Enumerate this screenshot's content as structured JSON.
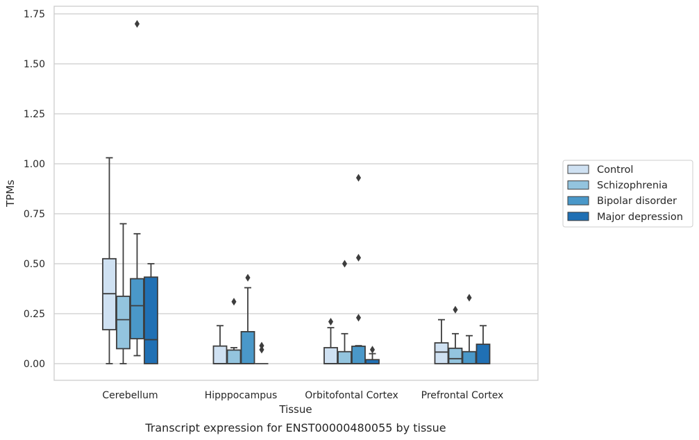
{
  "chart_data": {
    "type": "box",
    "title": "",
    "caption": "Transcript expression for ENST00000480055 by tissue",
    "xlabel": "Tissue",
    "ylabel": "TPMs",
    "ylim": [
      -0.08,
      1.78
    ],
    "yticks": [
      "0.00",
      "0.25",
      "0.50",
      "0.75",
      "1.00",
      "1.25",
      "1.50",
      "1.75"
    ],
    "grid": "horizontal",
    "legend_position": "right",
    "categories": [
      "Cerebellum",
      "Hipppocampus",
      "Orbitofontal Cortex",
      "Prefrontal Cortex"
    ],
    "series": [
      {
        "name": "Control",
        "color": "#cfe1f2",
        "boxes": [
          {
            "q1": 0.17,
            "median": 0.35,
            "q3": 0.525,
            "whisker_low": 0.0,
            "whisker_high": 1.03,
            "outliers": []
          },
          {
            "q1": 0.0,
            "median": 0.0,
            "q3": 0.088,
            "whisker_low": 0.0,
            "whisker_high": 0.19,
            "outliers": []
          },
          {
            "q1": 0.0,
            "median": 0.0,
            "q3": 0.08,
            "whisker_low": 0.0,
            "whisker_high": 0.18,
            "outliers": [
              0.21
            ]
          },
          {
            "q1": 0.0,
            "median": 0.058,
            "q3": 0.104,
            "whisker_low": 0.0,
            "whisker_high": 0.22,
            "outliers": []
          }
        ]
      },
      {
        "name": "Schizophrenia",
        "color": "#93c4de",
        "boxes": [
          {
            "q1": 0.075,
            "median": 0.22,
            "q3": 0.337,
            "whisker_low": 0.0,
            "whisker_high": 0.7,
            "outliers": []
          },
          {
            "q1": 0.0,
            "median": 0.0,
            "q3": 0.068,
            "whisker_low": 0.0,
            "whisker_high": 0.08,
            "outliers": [
              0.31
            ]
          },
          {
            "q1": 0.0,
            "median": 0.0,
            "q3": 0.06,
            "whisker_low": 0.0,
            "whisker_high": 0.15,
            "outliers": [
              0.5
            ]
          },
          {
            "q1": 0.0,
            "median": 0.025,
            "q3": 0.077,
            "whisker_low": 0.0,
            "whisker_high": 0.15,
            "outliers": [
              0.27
            ]
          }
        ]
      },
      {
        "name": "Bipolar disorder",
        "color": "#4a98c9",
        "boxes": [
          {
            "q1": 0.125,
            "median": 0.29,
            "q3": 0.425,
            "whisker_low": 0.04,
            "whisker_high": 0.65,
            "outliers": [
              1.7
            ]
          },
          {
            "q1": 0.0,
            "median": 0.0,
            "q3": 0.16,
            "whisker_low": 0.0,
            "whisker_high": 0.38,
            "outliers": [
              0.43
            ]
          },
          {
            "q1": 0.0,
            "median": 0.0,
            "q3": 0.087,
            "whisker_low": 0.0,
            "whisker_high": 0.09,
            "outliers": [
              0.23,
              0.53,
              0.93
            ]
          },
          {
            "q1": 0.0,
            "median": 0.0,
            "q3": 0.06,
            "whisker_low": 0.0,
            "whisker_high": 0.14,
            "outliers": [
              0.33
            ]
          }
        ]
      },
      {
        "name": "Major depression",
        "color": "#2070b4",
        "boxes": [
          {
            "q1": 0.0,
            "median": 0.12,
            "q3": 0.433,
            "whisker_low": 0.0,
            "whisker_high": 0.5,
            "outliers": []
          },
          {
            "q1": 0.0,
            "median": 0.0,
            "q3": 0.0,
            "whisker_low": 0.0,
            "whisker_high": 0.0,
            "outliers": [
              0.07,
              0.09
            ]
          },
          {
            "q1": 0.0,
            "median": 0.0,
            "q3": 0.02,
            "whisker_low": 0.0,
            "whisker_high": 0.05,
            "outliers": [
              0.07
            ]
          },
          {
            "q1": 0.0,
            "median": 0.0,
            "q3": 0.097,
            "whisker_low": 0.0,
            "whisker_high": 0.19,
            "outliers": []
          }
        ]
      }
    ]
  }
}
